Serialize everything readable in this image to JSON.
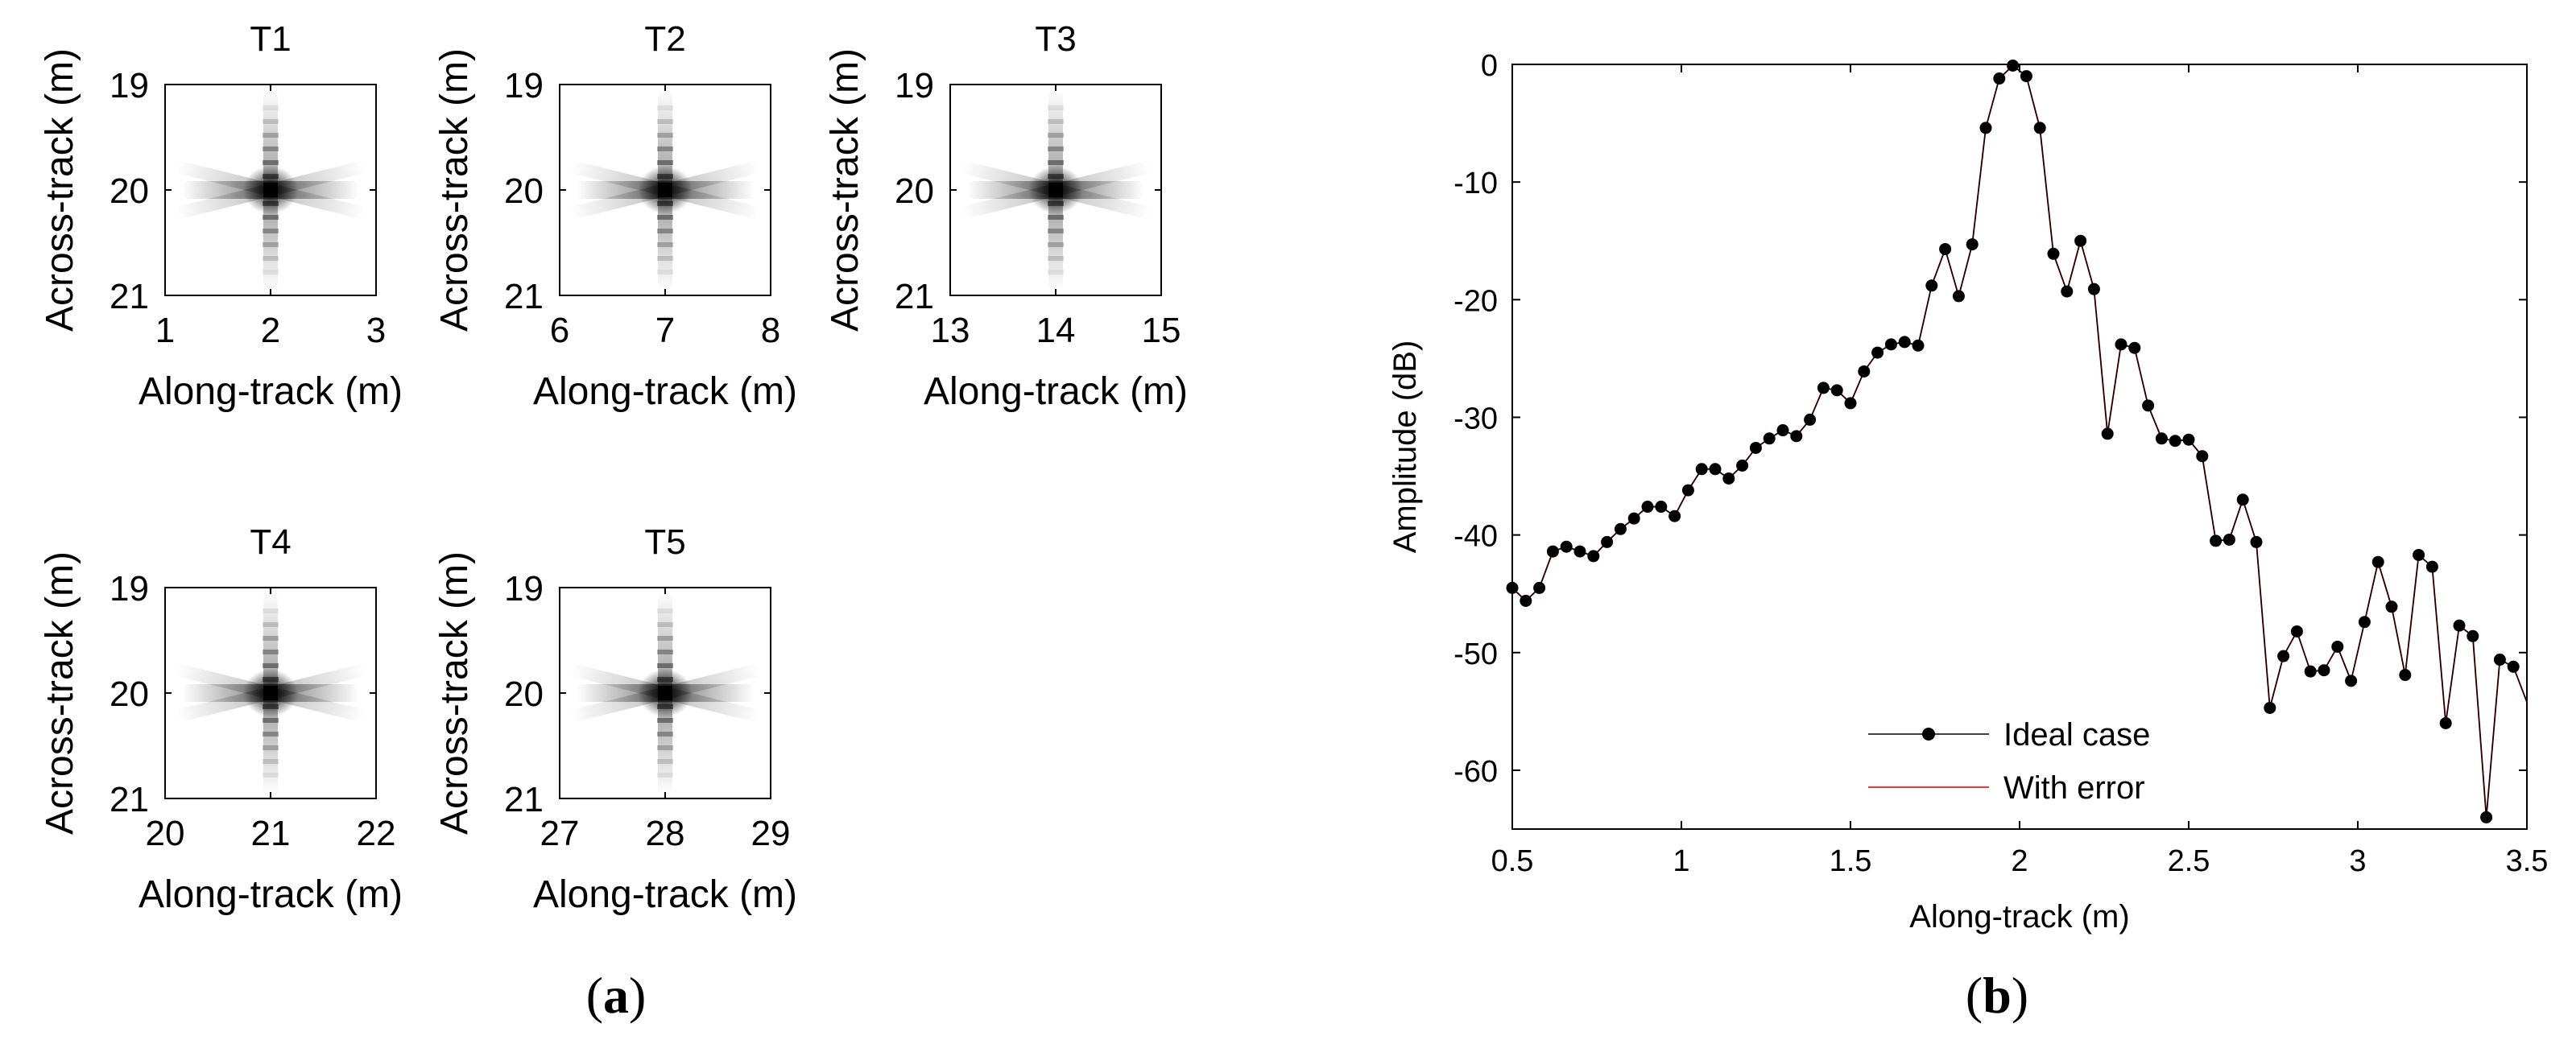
{
  "chart_data": [
    {
      "type": "heatmap",
      "panel_label": "a",
      "subplots": [
        {
          "title": "T1",
          "xlabel": "Along-track (m)",
          "ylabel": "Across-track (m)",
          "xlim": [
            1,
            3
          ],
          "ylim": [
            19,
            21
          ],
          "xticks": [
            "1",
            "2",
            "3"
          ],
          "yticks": [
            "19",
            "20",
            "21"
          ],
          "peak": [
            2,
            20
          ]
        },
        {
          "title": "T2",
          "xlabel": "Along-track (m)",
          "ylabel": "Across-track (m)",
          "xlim": [
            6,
            8
          ],
          "ylim": [
            19,
            21
          ],
          "xticks": [
            "6",
            "7",
            "8"
          ],
          "yticks": [
            "19",
            "20",
            "21"
          ],
          "peak": [
            7,
            20
          ]
        },
        {
          "title": "T3",
          "xlabel": "Along-track (m)",
          "ylabel": "Across-track (m)",
          "xlim": [
            13,
            15
          ],
          "ylim": [
            19,
            21
          ],
          "xticks": [
            "13",
            "14",
            "15"
          ],
          "yticks": [
            "19",
            "20",
            "21"
          ],
          "peak": [
            14,
            20
          ]
        },
        {
          "title": "T4",
          "xlabel": "Along-track (m)",
          "ylabel": "Across-track (m)",
          "xlim": [
            20,
            22
          ],
          "ylim": [
            19,
            21
          ],
          "xticks": [
            "20",
            "21",
            "22"
          ],
          "yticks": [
            "19",
            "20",
            "21"
          ],
          "peak": [
            21,
            20
          ]
        },
        {
          "title": "T5",
          "xlabel": "Along-track (m)",
          "ylabel": "Across-track (m)",
          "xlim": [
            27,
            29
          ],
          "ylim": [
            19,
            21
          ],
          "xticks": [
            "27",
            "28",
            "29"
          ],
          "yticks": [
            "19",
            "20",
            "21"
          ],
          "peak": [
            28,
            20
          ]
        }
      ]
    },
    {
      "type": "line",
      "panel_label": "b",
      "title": "",
      "xlabel": "Along-track (m)",
      "ylabel": "Amplitude (dB)",
      "xlim": [
        0.5,
        3.5
      ],
      "ylim": [
        -65,
        0
      ],
      "xticks": [
        "0.5",
        "1",
        "1.5",
        "2",
        "2.5",
        "3",
        "3.5"
      ],
      "yticks": [
        "0",
        "-10",
        "-20",
        "-30",
        "-40",
        "-50",
        "-60"
      ],
      "grid": false,
      "legend_position": "bottom-center",
      "x": [
        0.5,
        0.54,
        0.58,
        0.62,
        0.66,
        0.7,
        0.74,
        0.78,
        0.82,
        0.86,
        0.9,
        0.94,
        0.98,
        1.02,
        1.06,
        1.1,
        1.14,
        1.18,
        1.22,
        1.26,
        1.3,
        1.34,
        1.38,
        1.42,
        1.46,
        1.5,
        1.54,
        1.58,
        1.62,
        1.66,
        1.7,
        1.74,
        1.78,
        1.82,
        1.86,
        1.9,
        1.94,
        1.98,
        2.02,
        2.06,
        2.1,
        2.14,
        2.18,
        2.22,
        2.26,
        2.3,
        2.34,
        2.38,
        2.42,
        2.46,
        2.5,
        2.54,
        2.58,
        2.62,
        2.66,
        2.7,
        2.74,
        2.78,
        2.82,
        2.86,
        2.9,
        2.94,
        2.98,
        3.02,
        3.06,
        3.1,
        3.14,
        3.18,
        3.22,
        3.26,
        3.3,
        3.34,
        3.38,
        3.42,
        3.46,
        3.5
      ],
      "series": [
        {
          "name": "Ideal case",
          "color": "#000000",
          "marker": "circle",
          "values": [
            -44.5,
            -45.6,
            -44.5,
            -41.4,
            -41.0,
            -41.4,
            -41.8,
            -40.6,
            -39.5,
            -38.6,
            -37.6,
            -37.6,
            -38.4,
            -36.2,
            -34.4,
            -34.4,
            -35.2,
            -34.1,
            -32.6,
            -31.8,
            -31.1,
            -31.6,
            -30.2,
            -27.5,
            -27.7,
            -28.8,
            -26.1,
            -24.5,
            -23.8,
            -23.6,
            -23.9,
            -18.8,
            -15.7,
            -19.7,
            -15.3,
            -5.4,
            -1.2,
            -0.1,
            -1.0,
            -5.4,
            -16.1,
            -19.3,
            -15.0,
            -19.1,
            -31.4,
            -23.8,
            -24.1,
            -29.0,
            -31.8,
            -32.0,
            -31.9,
            -33.3,
            -40.5,
            -40.4,
            -37.0,
            -40.6,
            -54.7,
            -50.3,
            -48.2,
            -51.6,
            -51.5,
            -49.5,
            -52.4,
            -47.4,
            -42.3,
            -46.1,
            -51.9,
            -41.7,
            -42.7,
            -56.0,
            -47.7,
            -48.6,
            -64.0,
            -50.6,
            -51.2,
            -54.2
          ]
        },
        {
          "name": "With error",
          "color": "#ff3333",
          "marker": "none",
          "values": [
            -44.5,
            -45.6,
            -44.5,
            -41.4,
            -41.0,
            -41.4,
            -41.8,
            -40.6,
            -39.5,
            -38.6,
            -37.6,
            -37.6,
            -38.4,
            -36.2,
            -34.4,
            -34.4,
            -35.2,
            -34.1,
            -32.6,
            -31.8,
            -31.1,
            -31.6,
            -30.2,
            -27.5,
            -27.7,
            -28.8,
            -26.1,
            -24.5,
            -23.8,
            -23.6,
            -23.9,
            -18.8,
            -15.7,
            -19.7,
            -15.3,
            -5.4,
            -1.2,
            -0.1,
            -1.0,
            -5.4,
            -16.1,
            -19.3,
            -15.0,
            -19.1,
            -31.4,
            -23.8,
            -24.1,
            -29.0,
            -31.8,
            -32.0,
            -31.9,
            -33.3,
            -40.5,
            -40.4,
            -37.0,
            -40.6,
            -54.7,
            -50.3,
            -48.2,
            -51.6,
            -51.5,
            -49.5,
            -52.4,
            -47.4,
            -42.3,
            -46.1,
            -51.9,
            -41.7,
            -42.7,
            -56.0,
            -47.7,
            -48.6,
            -64.0,
            -50.6,
            -51.2,
            -54.2
          ]
        }
      ]
    }
  ]
}
